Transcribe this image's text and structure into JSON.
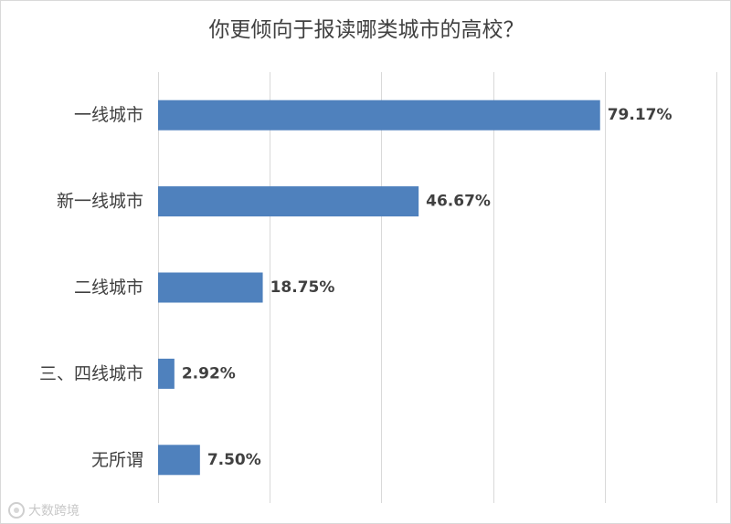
{
  "chart_data": {
    "type": "bar",
    "orientation": "horizontal",
    "title": "你更倾向于报读哪类城市的高校？",
    "categories": [
      "一线城市",
      "新一线城市",
      "二线城市",
      "三、四线城市",
      "无所谓"
    ],
    "values": [
      79.17,
      46.67,
      18.75,
      2.92,
      7.5
    ],
    "data_labels": [
      "79.17%",
      "46.67%",
      "18.75%",
      "2.92%",
      "7.50%"
    ],
    "xlim": [
      0,
      100
    ],
    "xlabel": "",
    "ylabel": "",
    "grid": "vertical",
    "legend": "none"
  },
  "colors": {
    "bar": "#4f81bd",
    "grid": "#d9d9d9",
    "text": "#404040"
  },
  "watermark": {
    "text": "大数跨境",
    "icon": "logo-circle-icon"
  }
}
